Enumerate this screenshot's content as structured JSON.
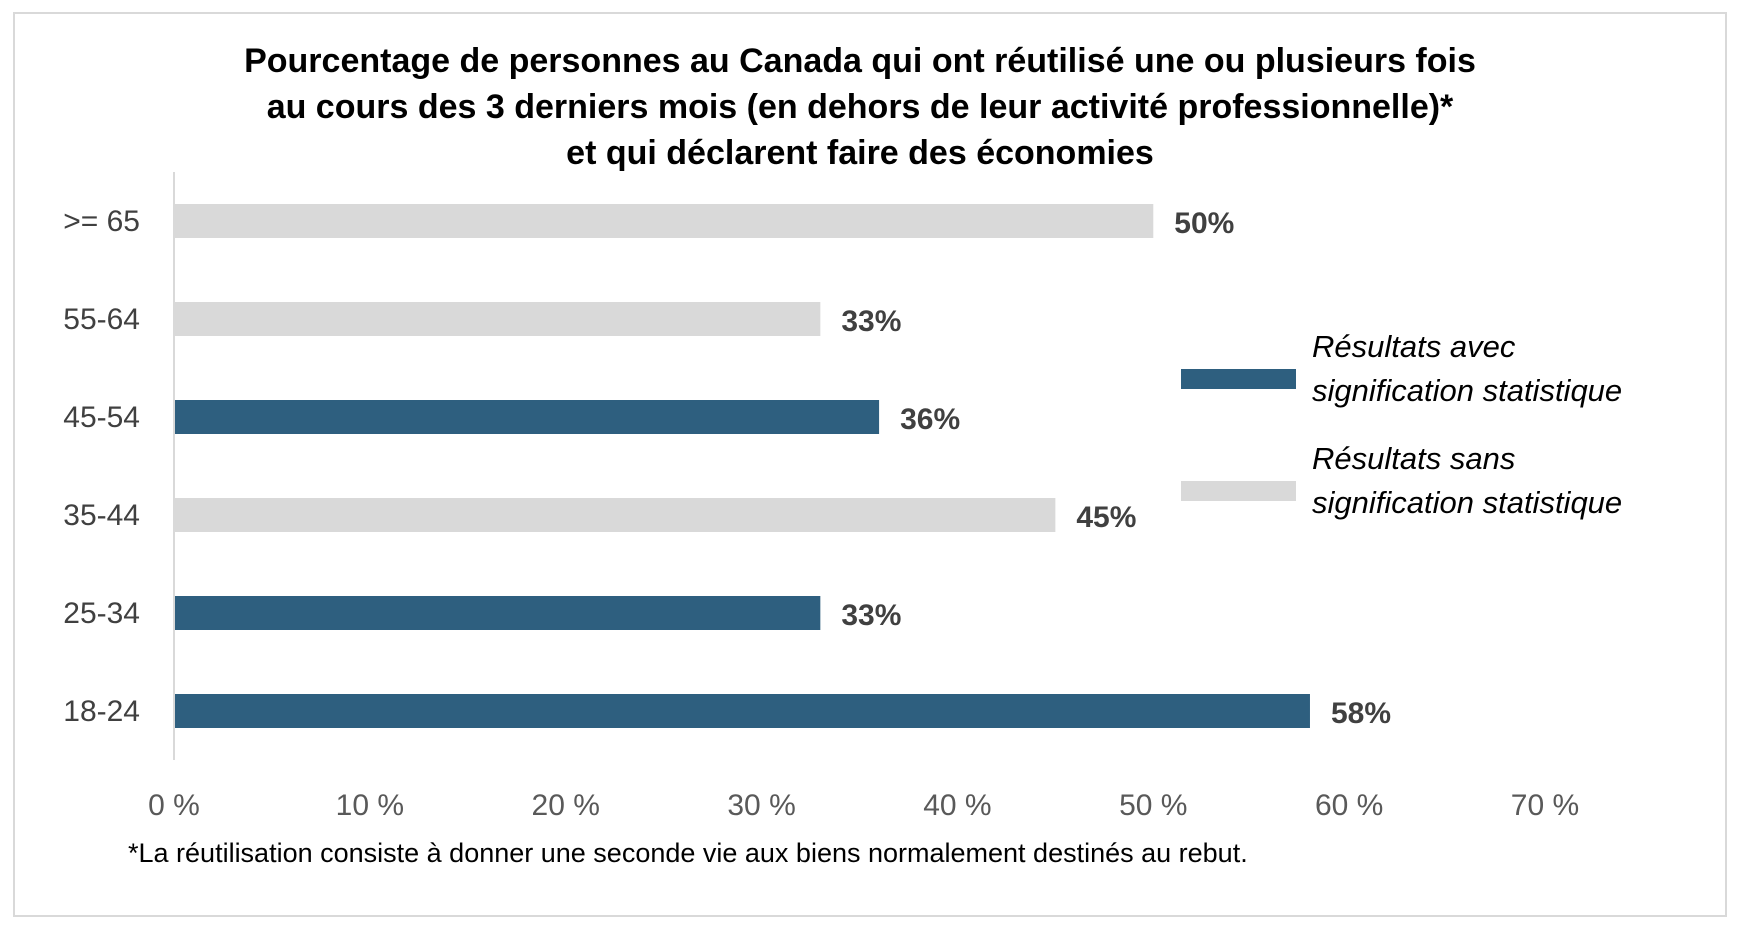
{
  "chart_data": {
    "type": "bar",
    "orientation": "horizontal",
    "title_lines": [
      "Pourcentage de personnes au Canada qui ont réutilisé une ou plusieurs fois",
      "au cours des 3 derniers mois (en dehors de leur activité professionnelle)*",
      "et qui déclarent faire des économies"
    ],
    "categories": [
      ">= 65",
      "55-64",
      "45-54",
      "35-44",
      "25-34",
      "18-24"
    ],
    "values": [
      50,
      33,
      36,
      45,
      33,
      58
    ],
    "data_labels": [
      "50%",
      "33%",
      "36%",
      "45%",
      "33%",
      "58%"
    ],
    "significance": [
      "sans",
      "sans",
      "avec",
      "sans",
      "avec",
      "avec"
    ],
    "xlim": [
      0,
      70
    ],
    "x_ticks": [
      0,
      10,
      20,
      30,
      40,
      50,
      60,
      70
    ],
    "x_tick_labels": [
      "0 %",
      "10 %",
      "20 %",
      "30 %",
      "40 %",
      "50 %",
      "60 %",
      "70 %"
    ],
    "grid": false,
    "legend": {
      "placement": "right",
      "entries": [
        {
          "key": "avec",
          "label_lines": [
            "Résultats avec",
            "signification statistique"
          ],
          "color": "#2e5f7f"
        },
        {
          "key": "sans",
          "label_lines": [
            "Résultats sans",
            "signification statistique"
          ],
          "color": "#d9d9d9"
        }
      ]
    },
    "colors": {
      "avec": "#2e5f7f",
      "sans": "#d9d9d9",
      "axis": "#d9d9d9"
    }
  },
  "footnote": "*La réutilisation consiste à donner une seconde vie aux biens normalement destinés au rebut."
}
